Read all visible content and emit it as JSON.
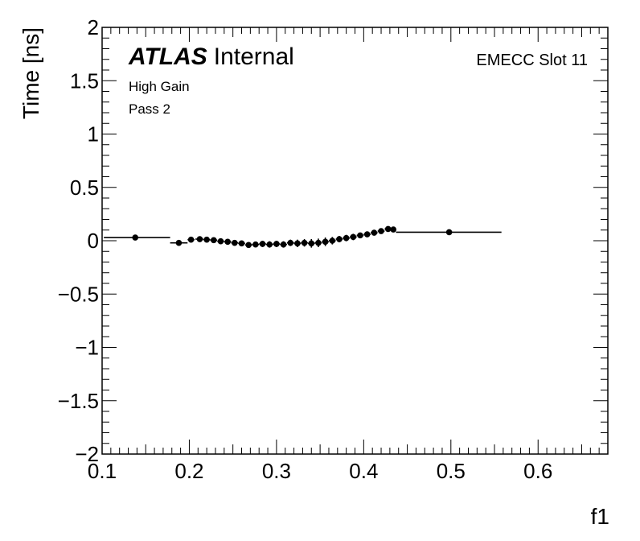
{
  "chart_data": {
    "type": "scatter",
    "style": "points-with-error-bars",
    "xlabel": "f1",
    "ylabel": "Time [ns]",
    "xlim": [
      0.1,
      0.68
    ],
    "ylim": [
      -2,
      2
    ],
    "x_ticks": [
      0.1,
      0.2,
      0.3,
      0.4,
      0.5,
      0.6
    ],
    "x_tick_labels": [
      "0.1",
      "0.2",
      "0.3",
      "0.4",
      "0.5",
      "0.6"
    ],
    "y_ticks": [
      -2,
      -1.5,
      -1,
      -0.5,
      0,
      0.5,
      1,
      1.5,
      2
    ],
    "y_tick_labels": [
      "−2",
      "−1.5",
      "−1",
      "−0.5",
      "0",
      "0.5",
      "1",
      "1.5",
      "2"
    ],
    "grid": false,
    "series": [
      {
        "name": "EMECC Slot 11",
        "color": "#000000",
        "points": [
          {
            "x": 0.138,
            "y": 0.03,
            "xerr": [
              0.102,
              0.178
            ],
            "yerr": 0.01
          },
          {
            "x": 0.188,
            "y": -0.02,
            "xerr": [
              0.178,
              0.198
            ],
            "yerr": 0.01
          },
          {
            "x": 0.202,
            "y": 0.01,
            "xerr": [
              0.198,
              0.206
            ],
            "yerr": 0.01
          },
          {
            "x": 0.212,
            "y": 0.015,
            "xerr": [
              0.207,
              0.216
            ],
            "yerr": 0.01
          },
          {
            "x": 0.22,
            "y": 0.01,
            "xerr": [
              0.216,
              0.224
            ],
            "yerr": 0.01
          },
          {
            "x": 0.228,
            "y": 0.005,
            "xerr": [
              0.224,
              0.232
            ],
            "yerr": 0.01
          },
          {
            "x": 0.236,
            "y": -0.005,
            "xerr": [
              0.232,
              0.24
            ],
            "yerr": 0.015
          },
          {
            "x": 0.244,
            "y": -0.01,
            "xerr": [
              0.24,
              0.248
            ],
            "yerr": 0.015
          },
          {
            "x": 0.252,
            "y": -0.02,
            "xerr": [
              0.248,
              0.256
            ],
            "yerr": 0.02
          },
          {
            "x": 0.26,
            "y": -0.025,
            "xerr": [
              0.256,
              0.264
            ],
            "yerr": 0.02
          },
          {
            "x": 0.268,
            "y": -0.04,
            "xerr": [
              0.264,
              0.272
            ],
            "yerr": 0.025
          },
          {
            "x": 0.276,
            "y": -0.035,
            "xerr": [
              0.272,
              0.28
            ],
            "yerr": 0.025
          },
          {
            "x": 0.284,
            "y": -0.03,
            "xerr": [
              0.28,
              0.288
            ],
            "yerr": 0.03
          },
          {
            "x": 0.292,
            "y": -0.035,
            "xerr": [
              0.288,
              0.296
            ],
            "yerr": 0.03
          },
          {
            "x": 0.3,
            "y": -0.03,
            "xerr": [
              0.296,
              0.304
            ],
            "yerr": 0.03
          },
          {
            "x": 0.308,
            "y": -0.035,
            "xerr": [
              0.304,
              0.312
            ],
            "yerr": 0.03
          },
          {
            "x": 0.316,
            "y": -0.02,
            "xerr": [
              0.312,
              0.32
            ],
            "yerr": 0.03
          },
          {
            "x": 0.324,
            "y": -0.025,
            "xerr": [
              0.32,
              0.328
            ],
            "yerr": 0.035
          },
          {
            "x": 0.332,
            "y": -0.02,
            "xerr": [
              0.328,
              0.336
            ],
            "yerr": 0.035
          },
          {
            "x": 0.34,
            "y": -0.025,
            "xerr": [
              0.336,
              0.344
            ],
            "yerr": 0.04
          },
          {
            "x": 0.348,
            "y": -0.02,
            "xerr": [
              0.344,
              0.352
            ],
            "yerr": 0.04
          },
          {
            "x": 0.356,
            "y": -0.01,
            "xerr": [
              0.352,
              0.36
            ],
            "yerr": 0.04
          },
          {
            "x": 0.364,
            "y": 0.0,
            "xerr": [
              0.36,
              0.368
            ],
            "yerr": 0.035
          },
          {
            "x": 0.372,
            "y": 0.015,
            "xerr": [
              0.368,
              0.376
            ],
            "yerr": 0.03
          },
          {
            "x": 0.38,
            "y": 0.025,
            "xerr": [
              0.376,
              0.384
            ],
            "yerr": 0.03
          },
          {
            "x": 0.388,
            "y": 0.035,
            "xerr": [
              0.384,
              0.392
            ],
            "yerr": 0.03
          },
          {
            "x": 0.396,
            "y": 0.05,
            "xerr": [
              0.392,
              0.4
            ],
            "yerr": 0.025
          },
          {
            "x": 0.404,
            "y": 0.06,
            "xerr": [
              0.4,
              0.408
            ],
            "yerr": 0.025
          },
          {
            "x": 0.412,
            "y": 0.075,
            "xerr": [
              0.408,
              0.416
            ],
            "yerr": 0.02
          },
          {
            "x": 0.42,
            "y": 0.09,
            "xerr": [
              0.416,
              0.424
            ],
            "yerr": 0.02
          },
          {
            "x": 0.428,
            "y": 0.11,
            "xerr": [
              0.424,
              0.432
            ],
            "yerr": 0.015
          },
          {
            "x": 0.434,
            "y": 0.105,
            "xerr": [
              0.432,
              0.437
            ],
            "yerr": 0.015
          },
          {
            "x": 0.498,
            "y": 0.08,
            "xerr": [
              0.437,
              0.558
            ],
            "yerr": 0.01
          }
        ]
      }
    ]
  },
  "labels": {
    "atlas_bold": "ATLAS",
    "atlas_status": "Internal",
    "gain": "High Gain",
    "pass": "Pass 2",
    "region": "EMECC Slot 11"
  }
}
